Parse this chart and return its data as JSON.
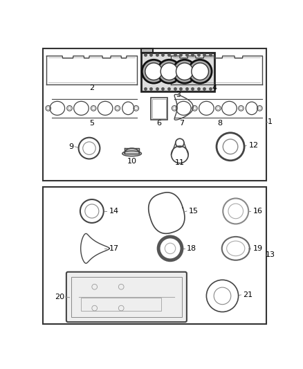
{
  "bg_color": "#ffffff",
  "line_color": "#444444",
  "label_color": "#000000",
  "fig_w": 4.38,
  "fig_h": 5.33,
  "dpi": 100
}
